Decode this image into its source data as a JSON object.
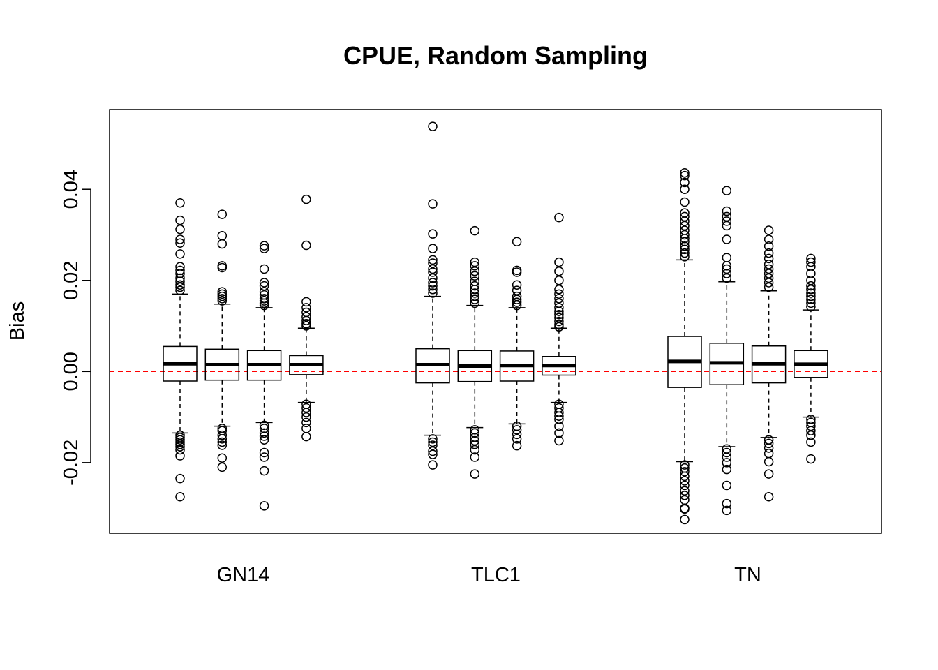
{
  "chart_data": {
    "type": "boxplot",
    "title": "CPUE, Random Sampling",
    "ylabel": "Bias",
    "xlabel": "",
    "ylim": [
      -0.0355,
      0.0575
    ],
    "yticks": [
      -0.02,
      0.0,
      0.02,
      0.04
    ],
    "ytick_labels": [
      "-0.02",
      "0.00",
      "0.02",
      "0.04"
    ],
    "reference_line": {
      "y": 0,
      "color": "#ff0000",
      "style": "dashed"
    },
    "groups": [
      {
        "label": "GN14",
        "boxes": [
          {
            "whisker_low": -0.0135,
            "q1": -0.0021,
            "median": 0.0017,
            "q3": 0.0055,
            "whisker_high": 0.017,
            "outliers": [
              0.037,
              0.0332,
              0.0312,
              0.029,
              0.0282,
              0.0258,
              0.023,
              0.0222,
              0.0215,
              0.0205,
              0.0198,
              0.019,
              0.0185,
              0.0178,
              -0.014,
              -0.0145,
              -0.015,
              -0.0155,
              -0.016,
              -0.0165,
              -0.0172,
              -0.0185,
              -0.0235,
              -0.0275
            ]
          },
          {
            "whisker_low": -0.012,
            "q1": -0.0019,
            "median": 0.0015,
            "q3": 0.0049,
            "whisker_high": 0.0148,
            "outliers": [
              0.0345,
              0.0298,
              0.028,
              0.0232,
              0.0228,
              0.0175,
              0.017,
              0.0165,
              0.016,
              0.0155,
              -0.0125,
              -0.013,
              -0.014,
              -0.0148,
              -0.0155,
              -0.0162,
              -0.019,
              -0.021
            ]
          },
          {
            "whisker_low": -0.0112,
            "q1": -0.0019,
            "median": 0.0015,
            "q3": 0.0046,
            "whisker_high": 0.014,
            "outliers": [
              0.0276,
              0.027,
              0.0225,
              0.0195,
              0.0188,
              0.0175,
              0.0168,
              0.016,
              0.0155,
              0.015,
              0.0145,
              -0.0118,
              -0.0125,
              -0.0135,
              -0.0142,
              -0.015,
              -0.0178,
              -0.0188,
              -0.0218,
              -0.0295
            ]
          },
          {
            "whisker_low": -0.0068,
            "q1": -0.0007,
            "median": 0.0015,
            "q3": 0.0035,
            "whisker_high": 0.0095,
            "outliers": [
              0.0378,
              0.0277,
              0.0153,
              0.014,
              0.013,
              0.012,
              0.0112,
              0.0105,
              0.01,
              -0.0072,
              -0.008,
              -0.009,
              -0.01,
              -0.0112,
              -0.0125,
              -0.0143
            ]
          }
        ]
      },
      {
        "label": "TLC1",
        "boxes": [
          {
            "whisker_low": -0.014,
            "q1": -0.0025,
            "median": 0.0015,
            "q3": 0.005,
            "whisker_high": 0.0165,
            "outliers": [
              0.0538,
              0.0368,
              0.0302,
              0.027,
              0.0245,
              0.0238,
              0.0225,
              0.0218,
              0.0205,
              0.0195,
              0.0188,
              0.018,
              0.0172,
              -0.0148,
              -0.0155,
              -0.0162,
              -0.0175,
              -0.0182,
              -0.0205
            ]
          },
          {
            "whisker_low": -0.0123,
            "q1": -0.0022,
            "median": 0.0012,
            "q3": 0.0046,
            "whisker_high": 0.0145,
            "outliers": [
              0.0309,
              0.024,
              0.0232,
              0.022,
              0.021,
              0.0198,
              0.0188,
              0.018,
              0.0172,
              0.0165,
              0.0158,
              0.015,
              -0.0128,
              -0.0135,
              -0.0145,
              -0.0152,
              -0.016,
              -0.0172,
              -0.0188,
              -0.0225
            ]
          },
          {
            "whisker_low": -0.0115,
            "q1": -0.0021,
            "median": 0.0013,
            "q3": 0.0045,
            "whisker_high": 0.014,
            "outliers": [
              0.0285,
              0.0222,
              0.0218,
              0.019,
              0.0178,
              0.0165,
              0.0158,
              0.0152,
              0.0145,
              -0.012,
              -0.0128,
              -0.0138,
              -0.0148,
              -0.0163
            ]
          },
          {
            "whisker_low": -0.0068,
            "q1": -0.0008,
            "median": 0.0013,
            "q3": 0.0033,
            "whisker_high": 0.0095,
            "outliers": [
              0.0338,
              0.024,
              0.022,
              0.02,
              0.018,
              0.017,
              0.016,
              0.015,
              0.014,
              0.0132,
              0.0125,
              0.0118,
              0.011,
              0.0103,
              0.0098,
              -0.0072,
              -0.008,
              -0.009,
              -0.0098,
              -0.0105,
              -0.012,
              -0.0135,
              -0.0152
            ]
          }
        ]
      },
      {
        "label": "TN",
        "boxes": [
          {
            "whisker_low": -0.0198,
            "q1": -0.0035,
            "median": 0.0022,
            "q3": 0.0077,
            "whisker_high": 0.0245,
            "outliers": [
              0.0436,
              0.043,
              0.0415,
              0.04,
              0.0372,
              0.0348,
              0.034,
              0.033,
              0.032,
              0.031,
              0.03,
              0.0292,
              0.0285,
              0.0275,
              0.0268,
              0.026,
              0.0252,
              -0.0205,
              -0.0212,
              -0.022,
              -0.023,
              -0.024,
              -0.025,
              -0.0262,
              -0.0272,
              -0.0282,
              -0.03,
              -0.0302,
              -0.0325
            ]
          },
          {
            "whisker_low": -0.0165,
            "q1": -0.0029,
            "median": 0.0019,
            "q3": 0.0062,
            "whisker_high": 0.0197,
            "outliers": [
              0.0397,
              0.0352,
              0.034,
              0.033,
              0.032,
              0.029,
              0.025,
              0.0232,
              0.0225,
              0.0215,
              0.0205,
              -0.017,
              -0.0178,
              -0.0188,
              -0.02,
              -0.0215,
              -0.025,
              -0.029,
              -0.0305
            ]
          },
          {
            "whisker_low": -0.0145,
            "q1": -0.0025,
            "median": 0.0017,
            "q3": 0.0056,
            "whisker_high": 0.0177,
            "outliers": [
              0.031,
              0.029,
              0.0275,
              0.026,
              0.0248,
              0.0235,
              0.0225,
              0.0215,
              0.0205,
              0.0195,
              0.0185,
              -0.015,
              -0.0158,
              -0.0168,
              -0.018,
              -0.0198,
              -0.0225,
              -0.0275
            ]
          },
          {
            "whisker_low": -0.01,
            "q1": -0.0013,
            "median": 0.0016,
            "q3": 0.0046,
            "whisker_high": 0.0135,
            "outliers": [
              0.0248,
              0.024,
              0.023,
              0.0215,
              0.02,
              0.0188,
              0.018,
              0.0172,
              0.0165,
              0.0158,
              0.015,
              0.0142,
              -0.0105,
              -0.0112,
              -0.012,
              -0.013,
              -0.014,
              -0.0155,
              -0.0192
            ]
          }
        ]
      }
    ]
  }
}
